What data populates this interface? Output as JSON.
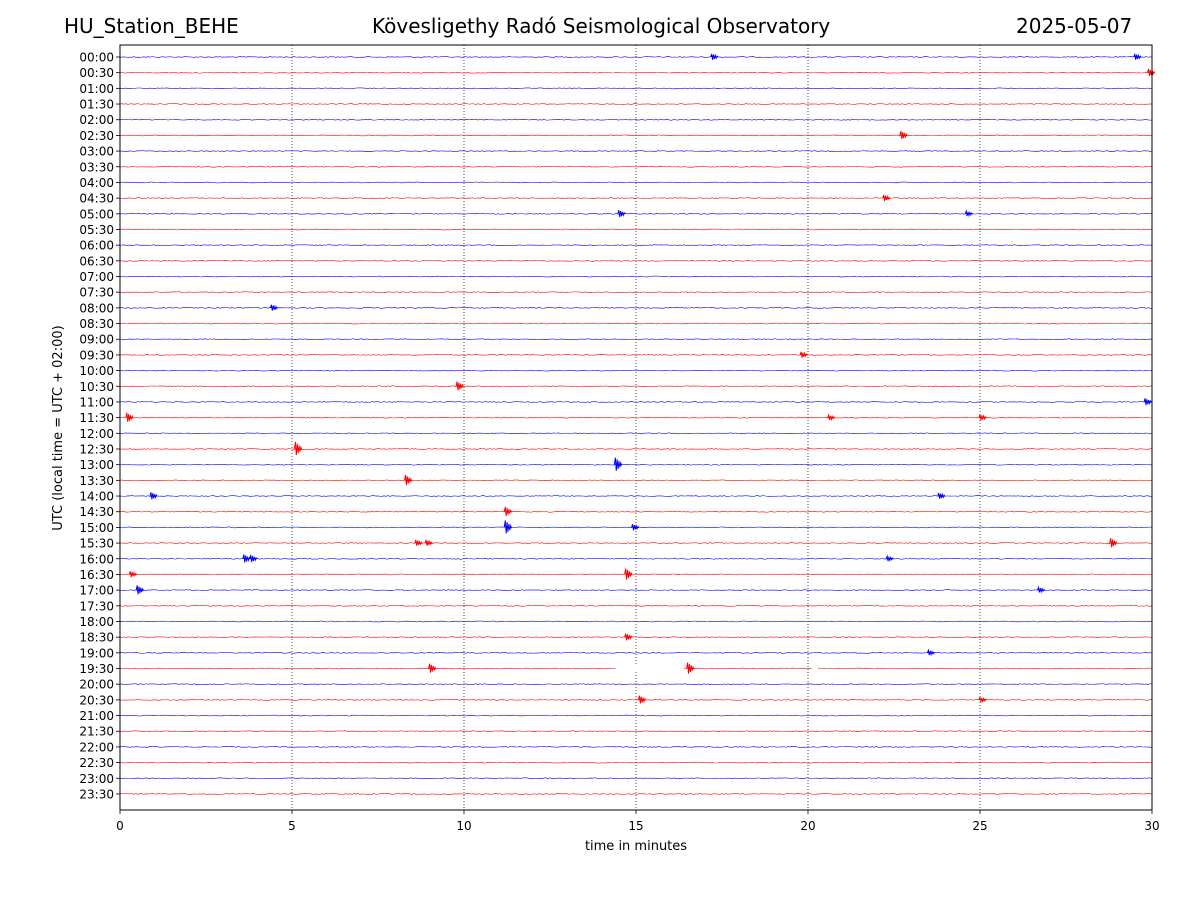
{
  "header": {
    "station": "HU_Station_BEHE",
    "observatory": "Kövesligethy Radó Seismological Observatory",
    "date": "2025-05-07"
  },
  "chart_data": {
    "type": "line",
    "title": "Kövesligethy Radó Seismological Observatory",
    "xlabel": "time in minutes",
    "ylabel": "UTC (local time = UTC + 02:00)",
    "xlim": [
      0,
      30
    ],
    "xticks": [
      "0",
      "5",
      "10",
      "15",
      "20",
      "25",
      "30"
    ],
    "grid": "vertical dotted at 5-minute ticks",
    "colors": {
      "trace_a": "#0000ff",
      "trace_b": "#ff0000",
      "grid": "#000000"
    },
    "rows": [
      "00:00",
      "00:30",
      "01:00",
      "01:30",
      "02:00",
      "02:30",
      "03:00",
      "03:30",
      "04:00",
      "04:30",
      "05:00",
      "05:30",
      "06:00",
      "06:30",
      "07:00",
      "07:30",
      "08:00",
      "08:30",
      "09:00",
      "09:30",
      "10:00",
      "10:30",
      "11:00",
      "11:30",
      "12:00",
      "12:30",
      "13:00",
      "13:30",
      "14:00",
      "14:30",
      "15:00",
      "15:30",
      "16:00",
      "16:30",
      "17:00",
      "17:30",
      "18:00",
      "18:30",
      "19:00",
      "19:30",
      "20:00",
      "20:30",
      "21:00",
      "21:30",
      "22:00",
      "22:30",
      "23:00",
      "23:30"
    ],
    "events": [
      {
        "row": "00:00",
        "minute": 17.2,
        "amp": 0.3
      },
      {
        "row": "00:00",
        "minute": 29.5,
        "amp": 0.3
      },
      {
        "row": "00:30",
        "minute": 29.9,
        "amp": 0.4
      },
      {
        "row": "02:30",
        "minute": 22.7,
        "amp": 0.5
      },
      {
        "row": "04:30",
        "minute": 22.2,
        "amp": 0.3
      },
      {
        "row": "05:00",
        "minute": 14.5,
        "amp": 0.4
      },
      {
        "row": "05:00",
        "minute": 24.6,
        "amp": 0.2
      },
      {
        "row": "08:00",
        "minute": 4.4,
        "amp": 0.3
      },
      {
        "row": "09:30",
        "minute": 19.8,
        "amp": 0.3
      },
      {
        "row": "10:30",
        "minute": 9.8,
        "amp": 0.6
      },
      {
        "row": "11:00",
        "minute": 29.8,
        "amp": 0.4
      },
      {
        "row": "11:30",
        "minute": 0.2,
        "amp": 0.6
      },
      {
        "row": "11:30",
        "minute": 20.6,
        "amp": 0.2
      },
      {
        "row": "11:30",
        "minute": 25.0,
        "amp": 0.3
      },
      {
        "row": "12:30",
        "minute": 5.1,
        "amp": 1.0
      },
      {
        "row": "13:00",
        "minute": 14.4,
        "amp": 1.0
      },
      {
        "row": "13:30",
        "minute": 8.3,
        "amp": 0.7
      },
      {
        "row": "14:00",
        "minute": 0.9,
        "amp": 0.4
      },
      {
        "row": "14:00",
        "minute": 23.8,
        "amp": 0.3
      },
      {
        "row": "14:30",
        "minute": 11.2,
        "amp": 0.6
      },
      {
        "row": "15:00",
        "minute": 11.2,
        "amp": 1.0
      },
      {
        "row": "15:00",
        "minute": 14.9,
        "amp": 0.3
      },
      {
        "row": "15:30",
        "minute": 8.6,
        "amp": 0.3
      },
      {
        "row": "15:30",
        "minute": 8.9,
        "amp": 0.3
      },
      {
        "row": "15:30",
        "minute": 28.8,
        "amp": 0.6
      },
      {
        "row": "16:00",
        "minute": 3.6,
        "amp": 0.5
      },
      {
        "row": "16:00",
        "minute": 3.8,
        "amp": 0.4
      },
      {
        "row": "16:00",
        "minute": 22.3,
        "amp": 0.2
      },
      {
        "row": "16:30",
        "minute": 0.3,
        "amp": 0.3
      },
      {
        "row": "16:30",
        "minute": 14.7,
        "amp": 0.8
      },
      {
        "row": "17:00",
        "minute": 0.5,
        "amp": 0.6
      },
      {
        "row": "17:00",
        "minute": 26.7,
        "amp": 0.2
      },
      {
        "row": "18:30",
        "minute": 14.7,
        "amp": 0.4
      },
      {
        "row": "19:00",
        "minute": 23.5,
        "amp": 0.2
      },
      {
        "row": "19:30",
        "minute": 9.0,
        "amp": 0.6
      },
      {
        "row": "19:30",
        "minute": 16.5,
        "amp": 0.8
      },
      {
        "row": "20:30",
        "minute": 15.1,
        "amp": 0.5
      },
      {
        "row": "20:30",
        "minute": 25.0,
        "amp": 0.2
      }
    ],
    "gaps": [
      {
        "row": "19:30",
        "from": 14.4,
        "to": 16.4
      },
      {
        "row": "19:30",
        "from": 20.1,
        "to": 20.3
      }
    ]
  }
}
